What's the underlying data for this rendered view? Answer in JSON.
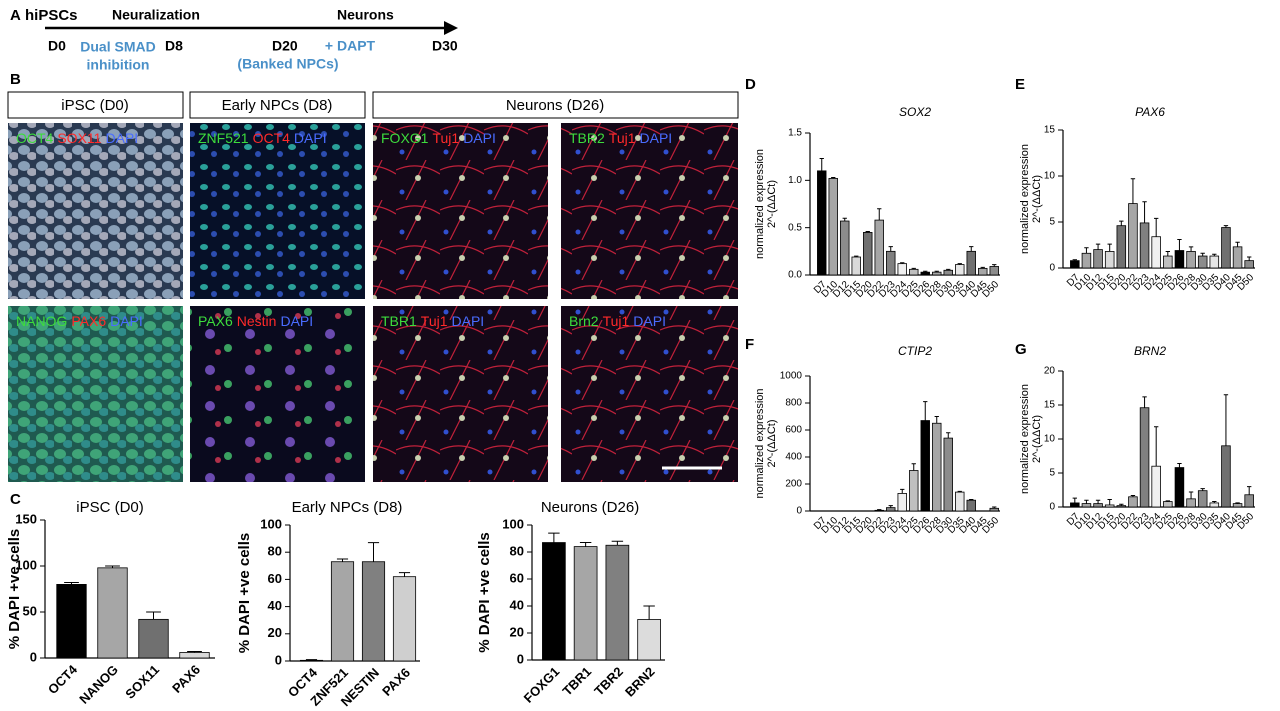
{
  "panel_labels": [
    "A",
    "B",
    "C",
    "D",
    "E",
    "F",
    "G"
  ],
  "timeline": {
    "stage_start": "hiPSCs",
    "stage_mid": "Neuralization",
    "stage_end": "Neurons",
    "days": [
      "D0",
      "D8",
      "D20",
      "D30"
    ],
    "treatment_1": [
      "Dual SMAD",
      "inhibition"
    ],
    "treatment_2": "+ DAPT",
    "note": "(Banked NPCs)"
  },
  "image_headers": [
    "iPSC (D0)",
    "Early NPCs (D8)",
    "Neurons (D26)"
  ],
  "images": [
    {
      "stains": [
        {
          "text": "OCT4",
          "color": "#3ddc3d"
        },
        {
          "text": "SOX11",
          "color": "#ff2a2a"
        },
        {
          "text": "DAPI",
          "color": "#4a6cff"
        }
      ]
    },
    {
      "stains": [
        {
          "text": "ZNF521",
          "color": "#3ddc3d"
        },
        {
          "text": "OCT4",
          "color": "#ff2a2a"
        },
        {
          "text": "DAPI",
          "color": "#4a6cff"
        }
      ]
    },
    {
      "stains": [
        {
          "text": "FOXG1",
          "color": "#3ddc3d"
        },
        {
          "text": "Tuj1",
          "color": "#ff2a2a"
        },
        {
          "text": "DAPI",
          "color": "#4a6cff"
        }
      ]
    },
    {
      "stains": [
        {
          "text": "TBR2",
          "color": "#3ddc3d"
        },
        {
          "text": "Tuj1",
          "color": "#ff2a2a"
        },
        {
          "text": "DAPI",
          "color": "#4a6cff"
        }
      ]
    },
    {
      "stains": [
        {
          "text": "NANOG",
          "color": "#3ddc3d"
        },
        {
          "text": "PAX6",
          "color": "#ff2a2a"
        },
        {
          "text": "DAPI",
          "color": "#4a6cff"
        }
      ]
    },
    {
      "stains": [
        {
          "text": "PAX6",
          "color": "#3ddc3d"
        },
        {
          "text": "Nestin",
          "color": "#ff2a2a"
        },
        {
          "text": "DAPI",
          "color": "#4a6cff"
        }
      ]
    },
    {
      "stains": [
        {
          "text": "TBR1",
          "color": "#3ddc3d"
        },
        {
          "text": "Tuj1",
          "color": "#ff2a2a"
        },
        {
          "text": "DAPI",
          "color": "#4a6cff"
        }
      ]
    },
    {
      "stains": [
        {
          "text": "Brn2",
          "color": "#3ddc3d"
        },
        {
          "text": "Tuj1",
          "color": "#ff2a2a"
        },
        {
          "text": "DAPI",
          "color": "#4a6cff"
        }
      ]
    }
  ],
  "chart_data": [
    {
      "type": "bar",
      "title": "iPSC (D0)",
      "ylabel": [
        "% DAPI +ve cells"
      ],
      "categories": [
        "OCT4",
        "NANOG",
        "SOX11",
        "PAX6"
      ],
      "values": [
        80,
        98,
        42,
        6
      ],
      "errors": [
        2,
        2,
        8,
        1
      ],
      "colors": [
        "#000000",
        "#a6a6a6",
        "#707070",
        "#d9d9d9"
      ],
      "ylim": [
        0,
        150
      ],
      "yticks": [
        0,
        50,
        100,
        150
      ]
    },
    {
      "type": "bar",
      "title": "Early NPCs (D8)",
      "ylabel": [
        "% DAPI +ve cells"
      ],
      "categories": [
        "OCT4",
        "ZNF521",
        "NESTIN",
        "PAX6"
      ],
      "values": [
        0.5,
        73,
        73,
        62
      ],
      "errors": [
        0.5,
        2,
        14,
        3
      ],
      "colors": [
        "#000000",
        "#a6a6a6",
        "#808080",
        "#cfcfcf"
      ],
      "ylim": [
        0,
        100
      ],
      "yticks": [
        0,
        20,
        40,
        60,
        80,
        100
      ]
    },
    {
      "type": "bar",
      "title": "Neurons (D26)",
      "ylabel": [
        "% DAPI +ve cells"
      ],
      "categories": [
        "FOXG1",
        "TBR1",
        "TBR2",
        "BRN2"
      ],
      "values": [
        87,
        84,
        85,
        30
      ],
      "errors": [
        7,
        3,
        3,
        10
      ],
      "colors": [
        "#000000",
        "#a6a6a6",
        "#808080",
        "#dcdcdc"
      ],
      "ylim": [
        0,
        100
      ],
      "yticks": [
        0,
        20,
        40,
        60,
        80,
        100
      ]
    },
    {
      "type": "bar",
      "title": "SOX2",
      "ylabel": [
        "normalized expression",
        "2^-(ΔΔCt)"
      ],
      "categories": [
        "D7",
        "D10",
        "D12",
        "D15",
        "D20",
        "D22",
        "D23",
        "D24",
        "D25",
        "D26",
        "D28",
        "D30",
        "D35",
        "D40",
        "D45",
        "D50"
      ],
      "values": [
        1.1,
        1.02,
        0.57,
        0.19,
        0.45,
        0.58,
        0.25,
        0.12,
        0.06,
        0.03,
        0.03,
        0.05,
        0.11,
        0.25,
        0.07,
        0.09
      ],
      "errors": [
        0.13,
        0.01,
        0.03,
        0.01,
        0.01,
        0.12,
        0.05,
        0.01,
        0.01,
        0.01,
        0.01,
        0.01,
        0.01,
        0.05,
        0.01,
        0.02
      ],
      "colors": [
        "#000000",
        "#a6a6a6",
        "#8c8c8c",
        "#d9d9d9",
        "#707070",
        "#a6a6a6",
        "#808080",
        "#f0f0f0",
        "#bfbfbf",
        "#000000",
        "#a6a6a6",
        "#8c8c8c",
        "#e6e6e6",
        "#707070",
        "#a6a6a6",
        "#8c8c8c"
      ],
      "ylim": [
        0,
        1.5
      ],
      "yticks": [
        {
          "value": 0,
          "label": "0.0"
        },
        0.5,
        {
          "value": 1,
          "label": "1.0"
        },
        1.5
      ]
    },
    {
      "type": "bar",
      "title": "PAX6",
      "ylabel": [
        "normalized expression",
        "2^-(ΔΔCt)"
      ],
      "categories": [
        "D7",
        "D10",
        "D12",
        "D15",
        "D20",
        "D22",
        "D23",
        "D24",
        "D25",
        "D26",
        "D28",
        "D30",
        "D35",
        "D40",
        "D45",
        "D50"
      ],
      "values": [
        0.8,
        1.6,
        2.0,
        1.8,
        4.6,
        7.0,
        4.9,
        3.4,
        1.3,
        1.9,
        1.8,
        1.3,
        1.3,
        4.4,
        2.3,
        0.8
      ],
      "errors": [
        0.1,
        0.6,
        0.6,
        0.8,
        0.5,
        2.7,
        2.3,
        2.0,
        0.5,
        1.2,
        0.5,
        0.3,
        0.2,
        0.2,
        0.5,
        0.4
      ],
      "colors": [
        "#000000",
        "#a6a6a6",
        "#8c8c8c",
        "#d9d9d9",
        "#707070",
        "#a6a6a6",
        "#808080",
        "#f0f0f0",
        "#bfbfbf",
        "#000000",
        "#a6a6a6",
        "#8c8c8c",
        "#e6e6e6",
        "#707070",
        "#a6a6a6",
        "#8c8c8c"
      ],
      "ylim": [
        0,
        15
      ],
      "yticks": [
        0,
        5,
        10,
        15
      ]
    },
    {
      "type": "bar",
      "title": "CTIP2",
      "ylabel": [
        "normalized expression",
        "2^-(ΔΔCt)"
      ],
      "categories": [
        "D7",
        "D10",
        "D12",
        "D15",
        "D20",
        "D22",
        "D23",
        "D24",
        "D25",
        "D26",
        "D28",
        "D30",
        "D35",
        "D40",
        "D45",
        "D50"
      ],
      "values": [
        0,
        0,
        0,
        0,
        0,
        5,
        25,
        130,
        300,
        670,
        650,
        540,
        140,
        80,
        0,
        20
      ],
      "errors": [
        0,
        0,
        0,
        0,
        0,
        5,
        15,
        30,
        50,
        140,
        50,
        40,
        5,
        5,
        0,
        10
      ],
      "colors": [
        "#000000",
        "#a6a6a6",
        "#8c8c8c",
        "#d9d9d9",
        "#707070",
        "#a6a6a6",
        "#808080",
        "#f0f0f0",
        "#bfbfbf",
        "#000000",
        "#a6a6a6",
        "#8c8c8c",
        "#e6e6e6",
        "#707070",
        "#a6a6a6",
        "#8c8c8c"
      ],
      "ylim": [
        0,
        1000
      ],
      "yticks": [
        0,
        200,
        400,
        600,
        800,
        1000
      ]
    },
    {
      "type": "bar",
      "title": "BRN2",
      "ylabel": [
        "normalized expression",
        "2^-(ΔΔCt)"
      ],
      "categories": [
        "D7",
        "D10",
        "D12",
        "D15",
        "D20",
        "D22",
        "D23",
        "D24",
        "D25",
        "D26",
        "D28",
        "D30",
        "D35",
        "D40",
        "D45",
        "D50"
      ],
      "values": [
        0.6,
        0.5,
        0.5,
        0.3,
        0.2,
        1.5,
        14.6,
        6,
        0.8,
        5.8,
        1.2,
        2.4,
        0.6,
        9,
        0.5,
        1.8
      ],
      "errors": [
        0.7,
        0.5,
        0.5,
        0.8,
        0.2,
        0.2,
        1.6,
        5.8,
        0.1,
        0.6,
        1.0,
        0.3,
        0.2,
        7.5,
        0.1,
        1.2
      ],
      "colors": [
        "#000000",
        "#a6a6a6",
        "#8c8c8c",
        "#d9d9d9",
        "#707070",
        "#a6a6a6",
        "#808080",
        "#f0f0f0",
        "#bfbfbf",
        "#000000",
        "#a6a6a6",
        "#8c8c8c",
        "#e6e6e6",
        "#707070",
        "#a6a6a6",
        "#8c8c8c"
      ],
      "ylim": [
        0,
        20
      ],
      "yticks": [
        0,
        5,
        10,
        15,
        20
      ]
    }
  ]
}
